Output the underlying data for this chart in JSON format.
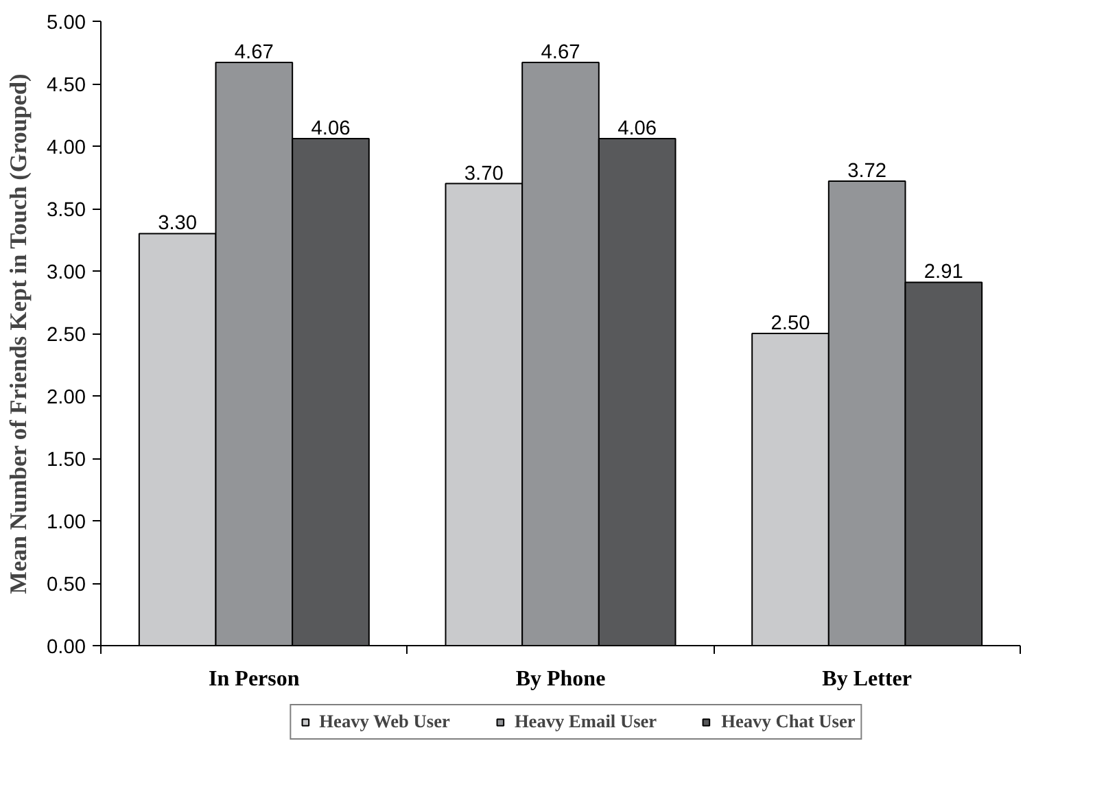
{
  "chart_data": {
    "type": "bar",
    "ylabel": "Mean Number of Friends Kept in Touch (Grouped)",
    "categories": [
      "In Person",
      "By Phone",
      "By Letter"
    ],
    "series": [
      {
        "name": "Heavy Web User",
        "color": "#c9cacc",
        "values": [
          3.3,
          3.7,
          2.5
        ],
        "value_labels": [
          "3.30",
          "3.70",
          "2.50"
        ]
      },
      {
        "name": "Heavy Email User",
        "color": "#939598",
        "values": [
          4.67,
          4.67,
          3.72
        ],
        "value_labels": [
          "4.67",
          "4.67",
          "3.72"
        ]
      },
      {
        "name": "Heavy Chat User",
        "color": "#58595b",
        "values": [
          4.06,
          4.06,
          2.91
        ],
        "value_labels": [
          "4.06",
          "4.06",
          "2.91"
        ]
      }
    ],
    "ylim": [
      0,
      5
    ],
    "yticks": [
      {
        "value": 0,
        "label": "0.00"
      },
      {
        "value": 0.5,
        "label": "0.50"
      },
      {
        "value": 1,
        "label": "1.00"
      },
      {
        "value": 1.5,
        "label": "1.50"
      },
      {
        "value": 2,
        "label": "2.00"
      },
      {
        "value": 2.5,
        "label": "2.50"
      },
      {
        "value": 3,
        "label": "3.00"
      },
      {
        "value": 3.5,
        "label": "3.50"
      },
      {
        "value": 4,
        "label": "4.00"
      },
      {
        "value": 4.5,
        "label": "4.50"
      },
      {
        "value": 5,
        "label": "5.00"
      }
    ],
    "grid": false,
    "legend": "bottom"
  }
}
